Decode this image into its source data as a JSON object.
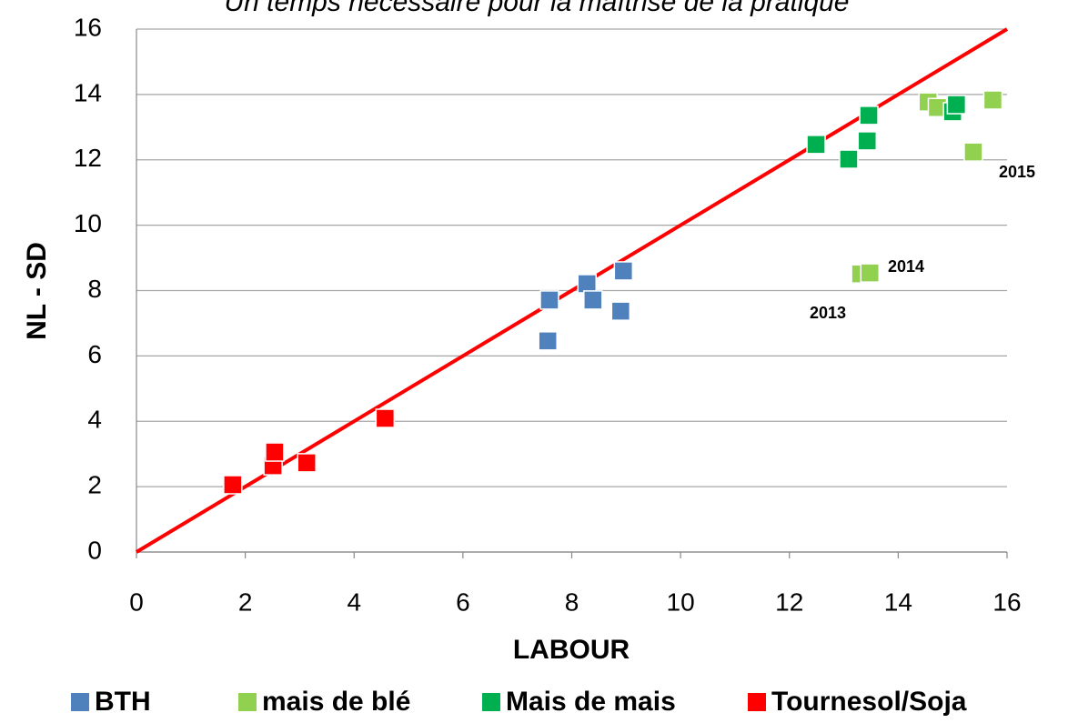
{
  "chart_data": {
    "type": "scatter",
    "title": "Un temps nécessaire pour la maîtrise de la pratique",
    "x_label": "LABOUR",
    "y_label": "NL - SD",
    "xlim": [
      0,
      16
    ],
    "ylim": [
      0,
      16
    ],
    "xticks": [
      0,
      2,
      4,
      6,
      8,
      10,
      12,
      14,
      16
    ],
    "yticks": [
      0,
      2,
      4,
      6,
      8,
      10,
      12,
      14,
      16
    ],
    "grid": true,
    "legend": "bottom",
    "series": [
      {
        "name": "BTH",
        "color": "#4f81bd",
        "x": [
          7.56,
          7.59,
          8.28,
          8.39,
          8.9,
          8.95
        ],
        "values": [
          6.46,
          7.71,
          8.21,
          7.71,
          7.37,
          8.6
        ]
      },
      {
        "name": "mais de blé",
        "color": "#92d050",
        "x": [
          13.31,
          13.48,
          14.55,
          14.72,
          15.38,
          15.74
        ],
        "values": [
          8.51,
          8.54,
          13.77,
          13.6,
          12.24,
          13.83
        ]
      },
      {
        "name": "Mais de mais",
        "color": "#00b050",
        "x": [
          12.49,
          13.09,
          13.43,
          13.46,
          15.0,
          15.07
        ],
        "values": [
          12.47,
          12.02,
          12.58,
          13.36,
          13.47,
          13.69
        ]
      },
      {
        "name": "Tournesol/Soja",
        "color": "#ff0000",
        "x": [
          1.77,
          2.51,
          2.54,
          3.13,
          4.57
        ],
        "values": [
          2.06,
          2.64,
          3.06,
          2.73,
          4.09
        ]
      }
    ],
    "reference_line": {
      "color": "#ff0000",
      "x": [
        0,
        16
      ],
      "values": [
        0,
        16
      ]
    },
    "annotations": [
      "2015",
      "2014",
      "2013"
    ]
  }
}
